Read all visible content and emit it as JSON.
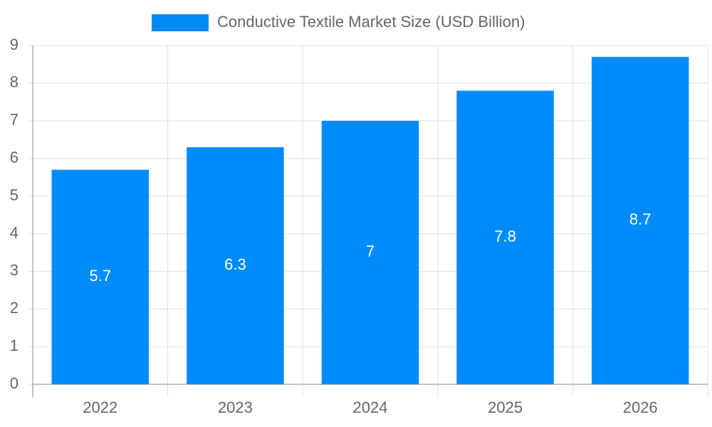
{
  "chart_data": {
    "type": "bar",
    "categories": [
      "2022",
      "2023",
      "2024",
      "2025",
      "2026"
    ],
    "series": [
      {
        "name": "Conductive Textile Market Size (USD Billion)",
        "color": "#008bfc",
        "values": [
          5.7,
          6.3,
          7,
          7.8,
          8.7
        ]
      }
    ],
    "ylim": [
      0,
      9
    ],
    "yticks": [
      0,
      1,
      2,
      3,
      4,
      5,
      6,
      7,
      8,
      9
    ],
    "grid": true,
    "legend": "top",
    "data_labels": true
  }
}
